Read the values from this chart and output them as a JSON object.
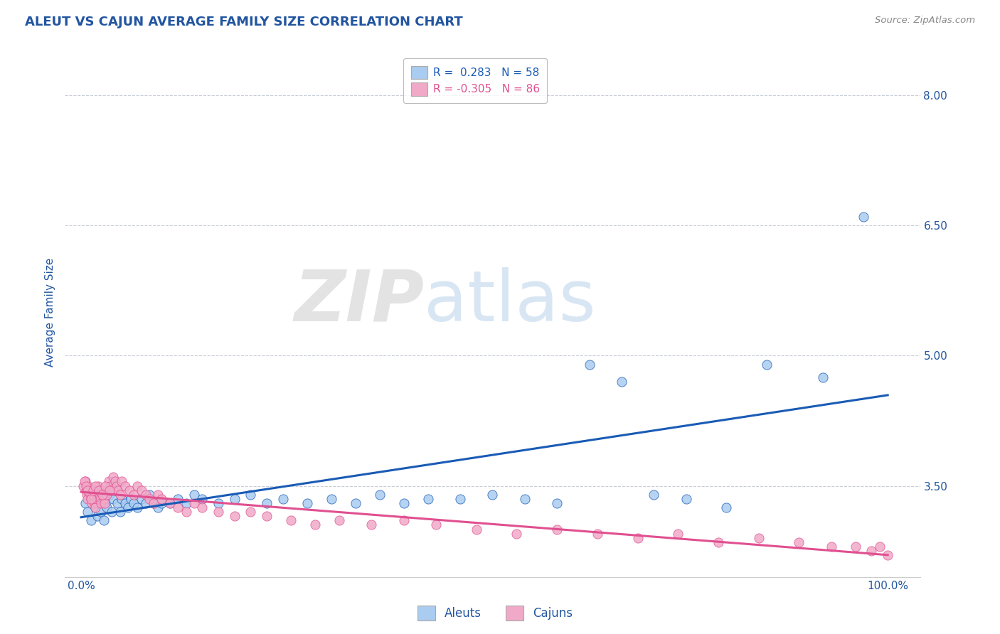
{
  "title": "ALEUT VS CAJUN AVERAGE FAMILY SIZE CORRELATION CHART",
  "source": "Source: ZipAtlas.com",
  "ylabel": "Average Family Size",
  "ylim": [
    2.45,
    8.55
  ],
  "xlim": [
    -0.02,
    1.04
  ],
  "yticks": [
    3.5,
    5.0,
    6.5,
    8.0
  ],
  "aleut_R": 0.283,
  "aleut_N": 58,
  "cajun_R": -0.305,
  "cajun_N": 86,
  "aleut_color": "#aaccf0",
  "cajun_color": "#f0aac8",
  "aleut_line_color": "#1a5bb5",
  "cajun_line_color": "#e05090",
  "legend_aleut_label": "Aleuts",
  "legend_cajun_label": "Cajuns",
  "title_color": "#2255a0",
  "source_color": "#888888",
  "axis_label_color": "#2255a0",
  "tick_color": "#2255a0",
  "watermark_zip": "ZIP",
  "watermark_atlas": "atlas",
  "aleut_x": [
    0.005,
    0.008,
    0.01,
    0.012,
    0.015,
    0.018,
    0.02,
    0.022,
    0.025,
    0.028,
    0.03,
    0.032,
    0.035,
    0.038,
    0.04,
    0.042,
    0.045,
    0.048,
    0.05,
    0.055,
    0.058,
    0.062,
    0.065,
    0.07,
    0.075,
    0.08,
    0.085,
    0.09,
    0.095,
    0.1,
    0.11,
    0.12,
    0.13,
    0.14,
    0.15,
    0.17,
    0.19,
    0.21,
    0.23,
    0.25,
    0.28,
    0.31,
    0.34,
    0.37,
    0.4,
    0.43,
    0.47,
    0.51,
    0.55,
    0.59,
    0.63,
    0.67,
    0.71,
    0.75,
    0.8,
    0.85,
    0.92,
    0.97
  ],
  "aleut_y": [
    3.3,
    3.2,
    3.4,
    3.1,
    3.35,
    3.25,
    3.15,
    3.3,
    3.2,
    3.1,
    3.3,
    3.25,
    3.4,
    3.2,
    3.35,
    3.45,
    3.3,
    3.2,
    3.35,
    3.3,
    3.25,
    3.35,
    3.3,
    3.25,
    3.35,
    3.3,
    3.4,
    3.3,
    3.25,
    3.3,
    3.3,
    3.35,
    3.3,
    3.4,
    3.35,
    3.3,
    3.35,
    3.4,
    3.3,
    3.35,
    3.3,
    3.35,
    3.3,
    3.4,
    3.3,
    3.35,
    3.35,
    3.4,
    3.35,
    3.3,
    4.9,
    4.7,
    3.4,
    3.35,
    3.25,
    4.9,
    4.75,
    6.6
  ],
  "cajun_x": [
    0.003,
    0.005,
    0.006,
    0.007,
    0.008,
    0.009,
    0.01,
    0.011,
    0.012,
    0.013,
    0.014,
    0.015,
    0.016,
    0.017,
    0.018,
    0.019,
    0.02,
    0.021,
    0.022,
    0.023,
    0.024,
    0.025,
    0.026,
    0.027,
    0.028,
    0.029,
    0.03,
    0.032,
    0.034,
    0.036,
    0.038,
    0.04,
    0.042,
    0.044,
    0.046,
    0.048,
    0.05,
    0.055,
    0.06,
    0.065,
    0.07,
    0.075,
    0.08,
    0.085,
    0.09,
    0.095,
    0.1,
    0.11,
    0.12,
    0.13,
    0.14,
    0.15,
    0.17,
    0.19,
    0.21,
    0.23,
    0.26,
    0.29,
    0.32,
    0.36,
    0.4,
    0.44,
    0.49,
    0.54,
    0.59,
    0.64,
    0.69,
    0.74,
    0.79,
    0.84,
    0.89,
    0.93,
    0.96,
    0.98,
    0.99,
    1.0,
    0.004,
    0.006,
    0.008,
    0.012,
    0.015,
    0.018,
    0.022,
    0.026,
    0.03,
    0.035
  ],
  "cajun_y": [
    3.5,
    3.55,
    3.45,
    3.4,
    3.35,
    3.5,
    3.45,
    3.4,
    3.35,
    3.3,
    3.45,
    3.4,
    3.35,
    3.3,
    3.25,
    3.4,
    3.35,
    3.5,
    3.45,
    3.4,
    3.35,
    3.3,
    3.45,
    3.4,
    3.35,
    3.3,
    3.45,
    3.4,
    3.55,
    3.5,
    3.45,
    3.6,
    3.55,
    3.5,
    3.45,
    3.4,
    3.55,
    3.5,
    3.45,
    3.4,
    3.5,
    3.45,
    3.4,
    3.35,
    3.3,
    3.4,
    3.35,
    3.3,
    3.25,
    3.2,
    3.3,
    3.25,
    3.2,
    3.15,
    3.2,
    3.15,
    3.1,
    3.05,
    3.1,
    3.05,
    3.1,
    3.05,
    3.0,
    2.95,
    3.0,
    2.95,
    2.9,
    2.95,
    2.85,
    2.9,
    2.85,
    2.8,
    2.8,
    2.75,
    2.8,
    2.7,
    3.55,
    3.5,
    3.45,
    3.35,
    3.45,
    3.5,
    3.45,
    3.4,
    3.5,
    3.45
  ]
}
